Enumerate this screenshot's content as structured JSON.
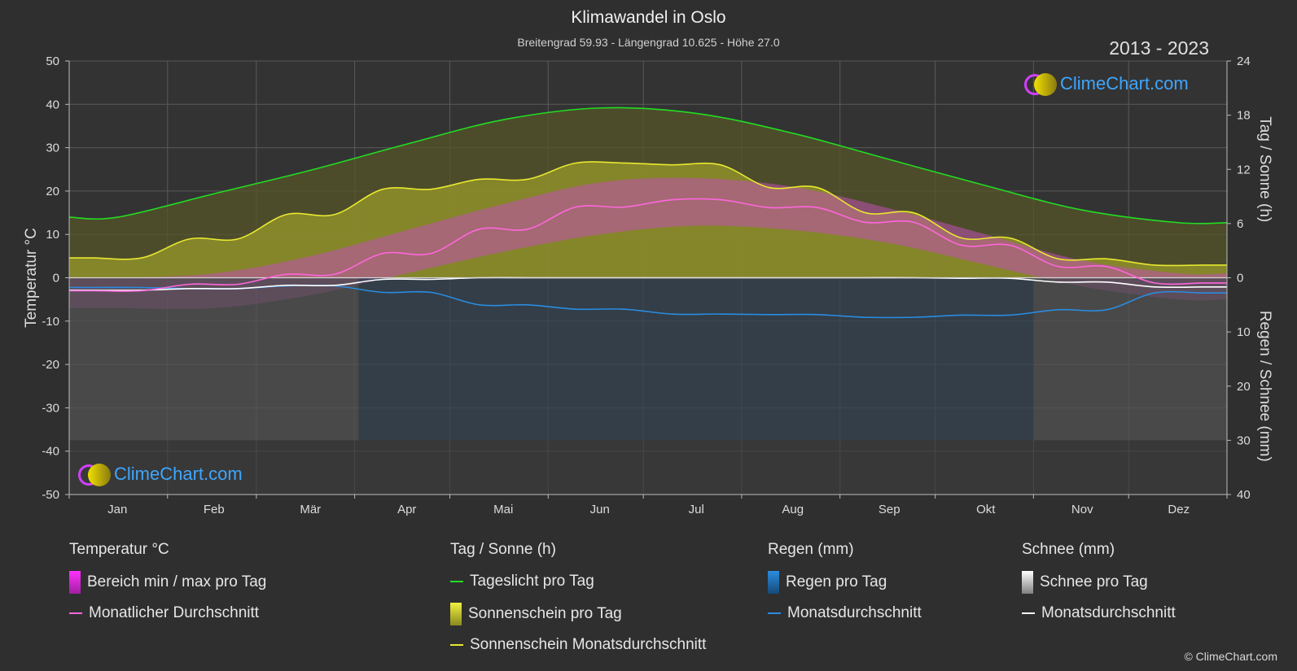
{
  "title": "Klimawandel in Oslo",
  "subtitle": "Breitengrad 59.93 - Längengrad 10.625 - Höhe 27.0",
  "years": "2013 - 2023",
  "logo_text": "ClimeChart.com",
  "copyright": "© ClimeChart.com",
  "colors": {
    "background": "#2f2f2f",
    "daylight": "#22dd22",
    "sunshine": "#e8e830",
    "temp_avg": "#ff66dd",
    "rain": "#2a8ce0",
    "snow": "#ffffff",
    "logo": "#3ea6ff"
  },
  "legend": {
    "temperature": {
      "heading": "Temperatur °C",
      "range": "Bereich min / max pro Tag",
      "avg": "Monatlicher Durchschnitt"
    },
    "sun": {
      "heading": "Tag / Sonne (h)",
      "daylight": "Tageslicht pro Tag",
      "sunshine": "Sonnenschein pro Tag",
      "sun_avg": "Sonnenschein Monatsdurchschnitt"
    },
    "rain": {
      "heading": "Regen (mm)",
      "rain_day": "Regen pro Tag",
      "rain_avg": "Monatsdurchschnitt"
    },
    "snow": {
      "heading": "Schnee (mm)",
      "snow_day": "Schnee pro Tag",
      "snow_avg": "Monatsdurchschnitt"
    }
  },
  "chart_data": {
    "type": "line",
    "xlabel": "",
    "ylabel_left": "Temperatur °C",
    "ylabel_right_top": "Tag / Sonne (h)",
    "ylabel_right_bottom": "Regen / Schnee (mm)",
    "categories": [
      "Jan",
      "Feb",
      "Mär",
      "Apr",
      "Mai",
      "Jun",
      "Jul",
      "Aug",
      "Sep",
      "Okt",
      "Nov",
      "Dez"
    ],
    "ylim_left": [
      -50,
      50
    ],
    "yticks_left": [
      50,
      40,
      30,
      20,
      10,
      0,
      -10,
      -20,
      -30,
      -40,
      -50
    ],
    "ylim_right_top": [
      0,
      24
    ],
    "yticks_right_top": [
      24,
      18,
      12,
      6,
      0
    ],
    "ylim_right_bottom": [
      0,
      40
    ],
    "yticks_right_bottom": [
      0,
      10,
      20,
      30,
      40
    ],
    "grid": true,
    "series": [
      {
        "name": "Tageslicht pro Tag",
        "axis": "hours",
        "values": [
          6.7,
          9.3,
          11.9,
          14.8,
          17.5,
          18.8,
          18.2,
          16.0,
          13.1,
          10.2,
          7.5,
          6.1
        ]
      },
      {
        "name": "Sonnenschein Monatsdurchschnitt",
        "axis": "hours",
        "values": [
          2.2,
          4.3,
          7.0,
          9.8,
          10.9,
          12.7,
          12.5,
          10.0,
          7.2,
          4.4,
          2.1,
          1.4
        ]
      },
      {
        "name": "Monatlicher Durchschnitt",
        "axis": "temperature",
        "values": [
          -3.0,
          -1.5,
          0.8,
          5.6,
          11.2,
          16.3,
          18.0,
          16.2,
          12.8,
          7.5,
          2.6,
          -1.2
        ]
      },
      {
        "name": "Regen Monatsdurchschnitt",
        "axis": "precip",
        "values": [
          1.8,
          2.0,
          1.5,
          2.7,
          5.0,
          5.8,
          6.7,
          6.8,
          7.3,
          6.9,
          5.9,
          2.8
        ]
      },
      {
        "name": "Schnee Monatsdurchschnitt",
        "axis": "precip",
        "values": [
          2.3,
          2.0,
          1.4,
          0.3,
          0.0,
          0.0,
          0.0,
          0.0,
          0.0,
          0.1,
          0.8,
          1.7
        ]
      }
    ],
    "temp_range": {
      "min": [
        -7,
        -7,
        -4,
        1,
        6,
        10,
        12,
        11,
        8,
        3,
        -2,
        -5
      ],
      "max": [
        0,
        1,
        5,
        11,
        17,
        22,
        23,
        21,
        16,
        10,
        4,
        1
      ]
    }
  }
}
